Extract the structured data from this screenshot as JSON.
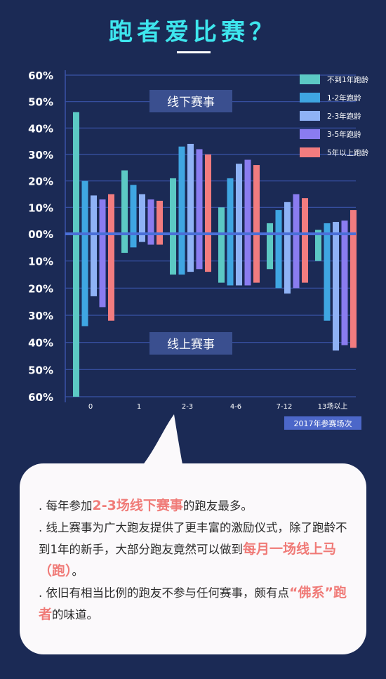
{
  "header": {
    "title": "跑者爱比赛？"
  },
  "chart_data": {
    "type": "bar",
    "categories": [
      "0",
      "1",
      "2-3",
      "4-6",
      "7-12",
      "13场以上"
    ],
    "xlabel": "2017年参赛场次",
    "y_ticks_top": [
      "60%",
      "50%",
      "40%",
      "30%",
      "20%",
      "10%",
      "00%"
    ],
    "y_ticks_bottom": [
      "10%",
      "20%",
      "30%",
      "40%",
      "50%",
      "60%"
    ],
    "ylim": [
      -60,
      60
    ],
    "region_labels": {
      "upper": "线下赛事",
      "lower": "线上赛事"
    },
    "legend_position": "top-right",
    "series": [
      {
        "name": "不到1年跑龄",
        "color": "#5cc9c4",
        "offline": [
          46,
          24,
          21,
          10,
          4,
          1.5
        ],
        "online": [
          60,
          7,
          15,
          18,
          13,
          10
        ]
      },
      {
        "name": "1-2年跑龄",
        "color": "#3fa6e2",
        "offline": [
          20,
          18.5,
          33,
          21,
          9,
          4
        ],
        "online": [
          34,
          5,
          15,
          19,
          20,
          32
        ]
      },
      {
        "name": "2-3年跑龄",
        "color": "#8fb2f5",
        "offline": [
          14.5,
          15,
          34,
          26.5,
          12,
          4.5
        ],
        "online": [
          23,
          3,
          14,
          19,
          22,
          43
        ]
      },
      {
        "name": "3-5年跑龄",
        "color": "#8a7cf0",
        "offline": [
          13,
          13,
          32,
          28,
          15,
          5
        ],
        "online": [
          27,
          4,
          13,
          19,
          20,
          41
        ]
      },
      {
        "name": "5年以上跑龄",
        "color": "#f27c7f",
        "offline": [
          15,
          12.5,
          30,
          26,
          13.5,
          9
        ],
        "online": [
          32,
          4,
          14,
          18,
          18,
          42
        ]
      }
    ]
  },
  "bubble": {
    "lines": [
      {
        "pre": ". 每年参加",
        "hl": "2-3场线下赛事",
        "post": "的跑友最多。"
      },
      {
        "pre": ".  线上赛事为广大跑友提供了更丰富的激励仪式，除了跑龄不到1年的新手，大部分跑友竟然可以做到",
        "hl": "每月一场线上马（跑）",
        "post": "。"
      },
      {
        "pre": ". 依旧有相当比例的跑友不参与任何赛事，颇有点",
        "hl": "“佛系”跑者",
        "post": "的味道。"
      }
    ]
  }
}
